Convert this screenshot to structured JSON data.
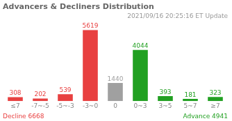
{
  "chart_data": {
    "type": "bar",
    "title": "Advancers & Decliners Distribution",
    "subtitle": "2021/09/16 20:25:16 ET Update",
    "categories": [
      "≤7",
      "-7~-5",
      "-5~-3",
      "-3~0",
      "0",
      "0~3",
      "3~5",
      "5~7",
      "≥7"
    ],
    "values": [
      308,
      202,
      539,
      5619,
      1440,
      4044,
      393,
      181,
      323
    ],
    "colors": [
      "#e84040",
      "#e84040",
      "#e84040",
      "#e84040",
      "#a0a0a0",
      "#21a021",
      "#21a021",
      "#21a021",
      "#21a021"
    ],
    "ylim": [
      0,
      6200
    ],
    "grid": false,
    "data_labels": true,
    "tick_labels": "x",
    "annotations": [
      {
        "text": "Decline 6668",
        "color": "#e84040"
      },
      {
        "text": "Advance 4941",
        "color": "#21a021"
      }
    ]
  }
}
